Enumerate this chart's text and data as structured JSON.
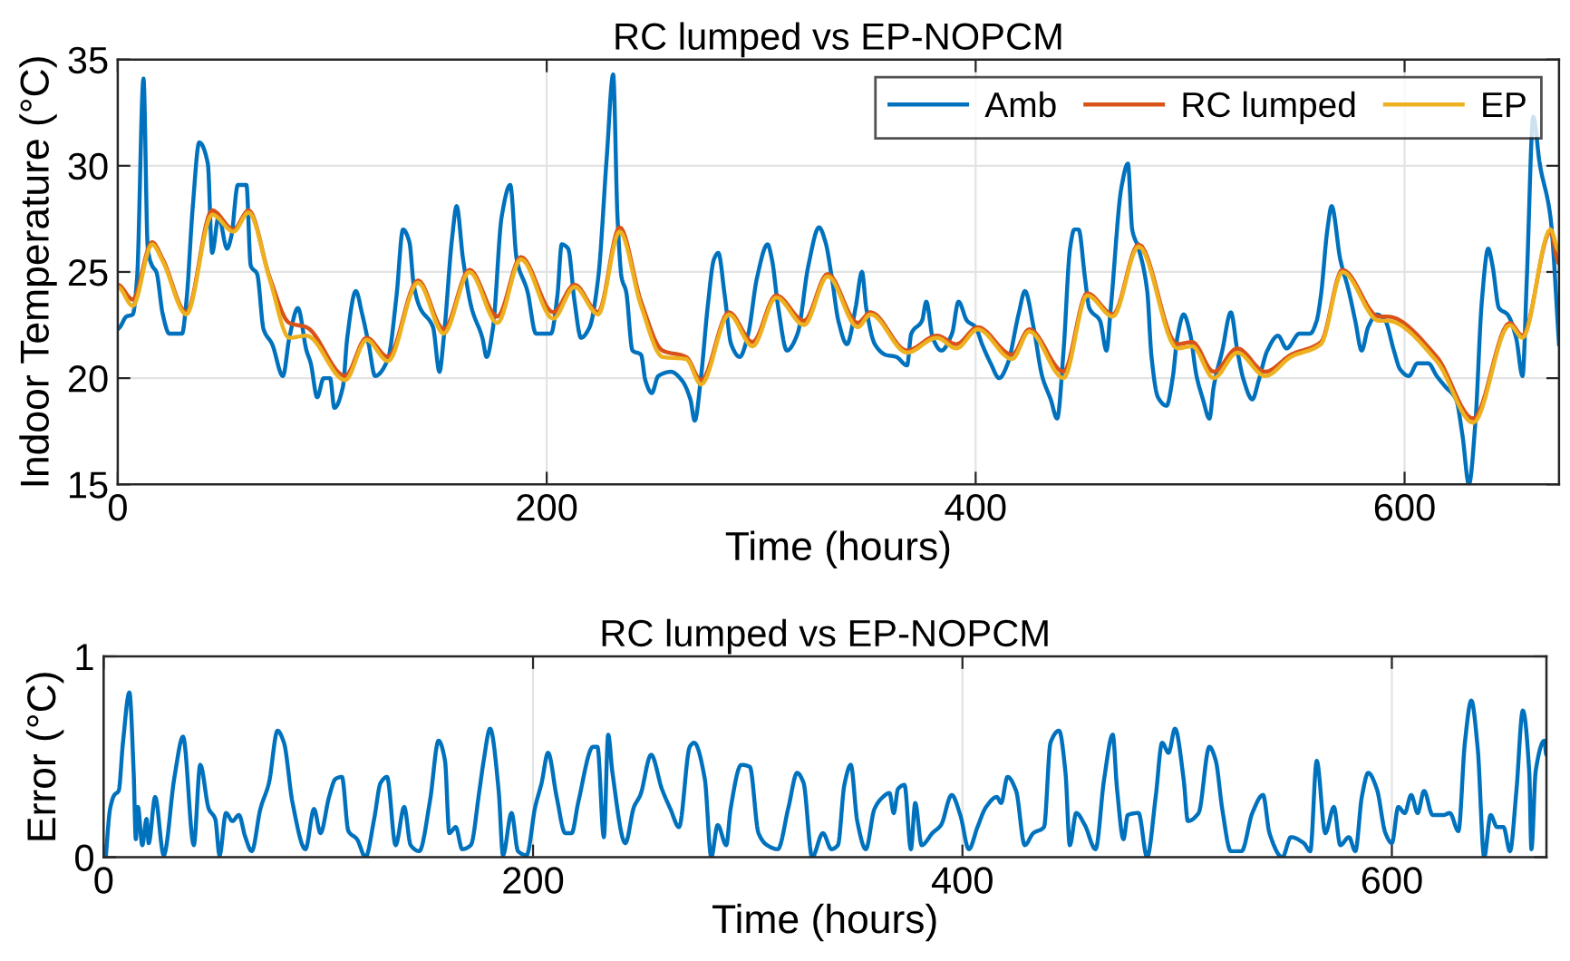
{
  "chart_data": [
    {
      "type": "line",
      "title": "RC lumped vs EP-NOPCM",
      "xlabel": "Time (hours)",
      "ylabel": "Indoor Temperature (°C)",
      "xlim": [
        0,
        672
      ],
      "xticks": [
        0,
        200,
        400,
        600
      ],
      "ylim": [
        15,
        35
      ],
      "yticks": [
        15,
        20,
        25,
        30,
        35
      ],
      "grid": true,
      "legend": "top right",
      "series": [
        {
          "name": "Amb",
          "color": "#0072bd",
          "x": [
            0,
            1,
            4,
            7,
            9,
            12,
            14,
            16,
            18,
            21,
            24,
            30,
            32,
            35,
            38,
            42,
            44,
            47,
            51,
            53,
            56,
            60,
            62,
            65,
            68,
            72,
            77,
            80,
            84,
            88,
            90,
            93,
            96,
            99,
            101,
            105,
            107,
            111,
            114,
            117,
            120,
            126,
            130,
            133,
            136,
            138,
            141,
            147,
            150,
            152,
            156,
            158,
            161,
            165,
            170,
            172,
            175,
            179,
            183,
            186,
            191,
            195,
            202,
            205,
            207,
            210,
            213,
            216,
            220,
            224,
            228,
            231,
            233,
            235,
            237,
            240,
            244,
            246,
            249,
            252,
            258,
            263,
            267,
            269,
            272,
            275,
            278,
            280,
            283,
            286,
            290,
            294,
            298,
            303,
            305,
            308,
            312,
            317,
            322,
            327,
            330,
            333,
            336,
            340,
            344,
            347,
            349,
            353,
            358,
            363,
            368,
            370,
            375,
            377,
            380,
            384,
            389,
            392,
            396,
            400,
            403,
            407,
            411,
            415,
            420,
            423,
            427,
            431,
            435,
            438,
            441,
            444,
            446,
            448,
            451,
            453,
            458,
            461,
            463,
            468,
            471,
            473,
            476,
            480,
            482,
            485,
            489,
            492,
            494,
            497,
            500,
            503,
            506,
            509,
            511,
            515,
            519,
            522,
            525,
            529,
            532,
            536,
            541,
            545,
            551,
            556,
            559,
            561,
            564,
            566,
            570,
            574,
            577,
            580,
            583,
            587,
            591,
            595,
            598,
            602,
            606,
            611,
            615,
            619,
            624,
            627,
            630,
            633,
            636,
            639,
            641,
            644,
            648,
            652,
            655,
            657,
            660,
            663,
            668,
            672
          ],
          "values": [
            22.3,
            22.4,
            22.9,
            23,
            24.7,
            34.1,
            26.1,
            25.3,
            25,
            23,
            22.1,
            22.1,
            23.6,
            28.1,
            31.1,
            30.1,
            25.9,
            27.6,
            26.1,
            26.7,
            29.1,
            29.1,
            25.3,
            24.9,
            22.3,
            21.6,
            20.1,
            21.9,
            23.3,
            21.3,
            20.7,
            19.1,
            20,
            20,
            18.6,
            19.6,
            21.9,
            24.1,
            23,
            21.6,
            20.1,
            20.9,
            23.9,
            27,
            26.4,
            24.4,
            23.3,
            22.4,
            20.3,
            21.9,
            26.7,
            28.1,
            25.6,
            23.3,
            21.9,
            21,
            22.4,
            27.6,
            29.1,
            25.6,
            24.1,
            22.1,
            22.1,
            23.9,
            26.3,
            26.1,
            23.6,
            21.9,
            22.4,
            24.7,
            30.4,
            34.3,
            27.6,
            24.7,
            24.1,
            21.3,
            21.1,
            19.9,
            19.3,
            20.1,
            20.3,
            19.9,
            19,
            18,
            20.1,
            23.3,
            25.6,
            25.9,
            23.9,
            21.6,
            21,
            22.1,
            24.7,
            26.3,
            25.6,
            23.3,
            21.3,
            22.1,
            25.3,
            27.1,
            26.4,
            24.7,
            22.7,
            21.6,
            23.3,
            25,
            23.3,
            21.6,
            21.1,
            21,
            20.6,
            22.1,
            22.7,
            23.6,
            21.9,
            21.3,
            22.1,
            23.6,
            22.7,
            22.4,
            21.6,
            20.7,
            20,
            20.7,
            23,
            24.1,
            22.4,
            20.1,
            19,
            18.1,
            21.3,
            26.1,
            27,
            27,
            24.7,
            23.3,
            22.7,
            21.3,
            23.3,
            29,
            30.1,
            27,
            26.1,
            24.1,
            21,
            19.1,
            18.7,
            20.1,
            21.9,
            23,
            22.1,
            20.1,
            19,
            18.1,
            19.6,
            21.3,
            23.1,
            21.3,
            19.9,
            19,
            19.9,
            21.3,
            22,
            21.4,
            22.1,
            22.1,
            22.7,
            23.9,
            27,
            28.1,
            25.6,
            24.1,
            22.7,
            21.3,
            22.4,
            23,
            22.7,
            21.3,
            20.4,
            20.1,
            20.7,
            20.7,
            20.1,
            19.6,
            19,
            17.3,
            15,
            17.9,
            23.6,
            26.1,
            25.3,
            23.3,
            23,
            21.9,
            20.1,
            24.7,
            32.3,
            30.1,
            27.6,
            21.6
          ]
        },
        {
          "name": "RC lumped",
          "color": "#d95319",
          "x": [
            0,
            7,
            16,
            21,
            32,
            44,
            54,
            61,
            71,
            80,
            88,
            106,
            116,
            126,
            140,
            152,
            164,
            177,
            188,
            203,
            213,
            224,
            234,
            244,
            254,
            265,
            272,
            285,
            296,
            307,
            320,
            331,
            345,
            351,
            368,
            382,
            391,
            401,
            417,
            425,
            441,
            452,
            464,
            476,
            494,
            501,
            511,
            522,
            535,
            547,
            561,
            571,
            588,
            592,
            615,
            632,
            649,
            655,
            668,
            672
          ],
          "values": [
            24.4,
            23.7,
            26.4,
            25.6,
            23.1,
            27.9,
            27,
            27.9,
            24.7,
            22.6,
            22.4,
            20.1,
            21.9,
            21,
            24.6,
            22.3,
            25.1,
            22.9,
            25.7,
            23.1,
            24.4,
            23.1,
            27.1,
            23.6,
            21.3,
            21,
            19.9,
            23.1,
            21.7,
            23.9,
            22.7,
            24.9,
            22.6,
            23.1,
            21.3,
            22,
            21.6,
            22.4,
            21.1,
            22.3,
            20.3,
            24,
            23,
            26.3,
            21.6,
            21.7,
            20.3,
            21.4,
            20.3,
            21.1,
            21.7,
            25.1,
            22.9,
            22.9,
            21,
            18.1,
            22.6,
            22,
            26.9,
            25.4
          ]
        },
        {
          "name": "EP",
          "color": "#edb120",
          "x": [
            0,
            7,
            16,
            21,
            32,
            44,
            54,
            61,
            71,
            80,
            88,
            106,
            116,
            126,
            140,
            152,
            164,
            177,
            188,
            203,
            213,
            224,
            234,
            244,
            254,
            265,
            272,
            285,
            296,
            307,
            320,
            331,
            345,
            351,
            368,
            382,
            391,
            401,
            417,
            425,
            441,
            452,
            464,
            476,
            494,
            501,
            511,
            522,
            535,
            547,
            561,
            571,
            588,
            592,
            615,
            632,
            649,
            655,
            668,
            672
          ],
          "values": [
            24.3,
            23.4,
            26.3,
            25.5,
            23,
            27.7,
            26.9,
            27.8,
            24.6,
            21.9,
            22,
            19.9,
            21.8,
            20.8,
            24.5,
            22.1,
            25,
            22.6,
            25.6,
            22.8,
            24.3,
            23,
            26.9,
            23.4,
            21,
            20.9,
            19.7,
            23,
            21.5,
            23.8,
            22.5,
            24.8,
            22.4,
            23,
            21.2,
            21.9,
            21.4,
            22.3,
            20.9,
            22.2,
            20,
            23.9,
            22.9,
            26.2,
            21.4,
            21.5,
            20,
            21.2,
            20.1,
            21,
            21.6,
            25,
            22.7,
            22.7,
            20.8,
            17.9,
            22.5,
            21.9,
            27,
            26
          ]
        }
      ]
    },
    {
      "type": "line",
      "title": "RC lumped vs EP-NOPCM",
      "xlabel": "Time (hours)",
      "ylabel": "Error (°C)",
      "xlim": [
        0,
        672
      ],
      "xticks": [
        0,
        200,
        400,
        600
      ],
      "ylim": [
        0,
        1
      ],
      "yticks": [
        0,
        1
      ],
      "grid": true,
      "series": [
        {
          "color": "#0072bd",
          "x": [
            1,
            3,
            5,
            7,
            9,
            12,
            14,
            15,
            16,
            18,
            20,
            21,
            24,
            28,
            33,
            37,
            42,
            45,
            49,
            52,
            54,
            57,
            60,
            63,
            66,
            69,
            73,
            77,
            81,
            84,
            88,
            94,
            98,
            101,
            105,
            108,
            111,
            114,
            118,
            122,
            126,
            129,
            132,
            136,
            140,
            143,
            147,
            152,
            156,
            159,
            161,
            164,
            167,
            171,
            175,
            177,
            180,
            184,
            186,
            190,
            193,
            197,
            201,
            204,
            207,
            211,
            215,
            218,
            221,
            228,
            230,
            233,
            235,
            237,
            243,
            247,
            250,
            255,
            260,
            264,
            268,
            273,
            275,
            280,
            283,
            286,
            290,
            292,
            297,
            301,
            305,
            309,
            314,
            319,
            323,
            326,
            330,
            335,
            339,
            342,
            345,
            348,
            351,
            355,
            359,
            363,
            366,
            368,
            370,
            373,
            376,
            378,
            381,
            386,
            390,
            395,
            399,
            403,
            407,
            411,
            416,
            418,
            421,
            425,
            429,
            433,
            438,
            441,
            445,
            448,
            450,
            453,
            457,
            462,
            466,
            470,
            472,
            475,
            477,
            482,
            486,
            490,
            493,
            496,
            499,
            503,
            505,
            510,
            515,
            518,
            521,
            525,
            530,
            535,
            540,
            543,
            549,
            553,
            559,
            562,
            565,
            569,
            573,
            576,
            580,
            583,
            586,
            589,
            593,
            597,
            600,
            603,
            606,
            609,
            612,
            615,
            619,
            624,
            627,
            631,
            634,
            637,
            640,
            643,
            646,
            649,
            652,
            655,
            658,
            661,
            664,
            665,
            667,
            671,
            672
          ],
          "values": [
            0,
            0.24,
            0.31,
            0.33,
            0.57,
            0.82,
            0.42,
            0.09,
            0.25,
            0.06,
            0.19,
            0.07,
            0.3,
            0.01,
            0.4,
            0.6,
            0.06,
            0.46,
            0.24,
            0.19,
            0.01,
            0.22,
            0.18,
            0.21,
            0.1,
            0.03,
            0.24,
            0.37,
            0.63,
            0.57,
            0.27,
            0.04,
            0.24,
            0.12,
            0.3,
            0.39,
            0.4,
            0.13,
            0.09,
            0,
            0.19,
            0.37,
            0.4,
            0.06,
            0.25,
            0.06,
            0.03,
            0.28,
            0.58,
            0.48,
            0.12,
            0.15,
            0.04,
            0.06,
            0.33,
            0.48,
            0.64,
            0.33,
            0.01,
            0.22,
            0.03,
            0.01,
            0.25,
            0.37,
            0.52,
            0.3,
            0.12,
            0.12,
            0.27,
            0.55,
            0.55,
            0.1,
            0.61,
            0.42,
            0.07,
            0.25,
            0.31,
            0.51,
            0.34,
            0.24,
            0.15,
            0.55,
            0.57,
            0.39,
            0,
            0.16,
            0.06,
            0.24,
            0.46,
            0.45,
            0.12,
            0.06,
            0.04,
            0.25,
            0.42,
            0.37,
            0,
            0.12,
            0.04,
            0.06,
            0.36,
            0.46,
            0.18,
            0.04,
            0.24,
            0.3,
            0.32,
            0.22,
            0.34,
            0.36,
            0.04,
            0.27,
            0.06,
            0.12,
            0.16,
            0.31,
            0.21,
            0.04,
            0.15,
            0.25,
            0.3,
            0.27,
            0.4,
            0.33,
            0.06,
            0.12,
            0.15,
            0.57,
            0.63,
            0.42,
            0.06,
            0.22,
            0.16,
            0.04,
            0.39,
            0.61,
            0.34,
            0.09,
            0.21,
            0.22,
            0,
            0.3,
            0.57,
            0.52,
            0.64,
            0.39,
            0.18,
            0.22,
            0.55,
            0.48,
            0.24,
            0.03,
            0.03,
            0.22,
            0.31,
            0.12,
            0,
            0.1,
            0.07,
            0.03,
            0.48,
            0.12,
            0.25,
            0.06,
            0.1,
            0.03,
            0.3,
            0.42,
            0.34,
            0.12,
            0.07,
            0.25,
            0.22,
            0.31,
            0.22,
            0.33,
            0.21,
            0.21,
            0.22,
            0.13,
            0.57,
            0.78,
            0.54,
            0,
            0.21,
            0.15,
            0.15,
            0.03,
            0.33,
            0.73,
            0.42,
            0.04,
            0.43,
            0.58,
            0.51
          ]
        }
      ]
    }
  ]
}
